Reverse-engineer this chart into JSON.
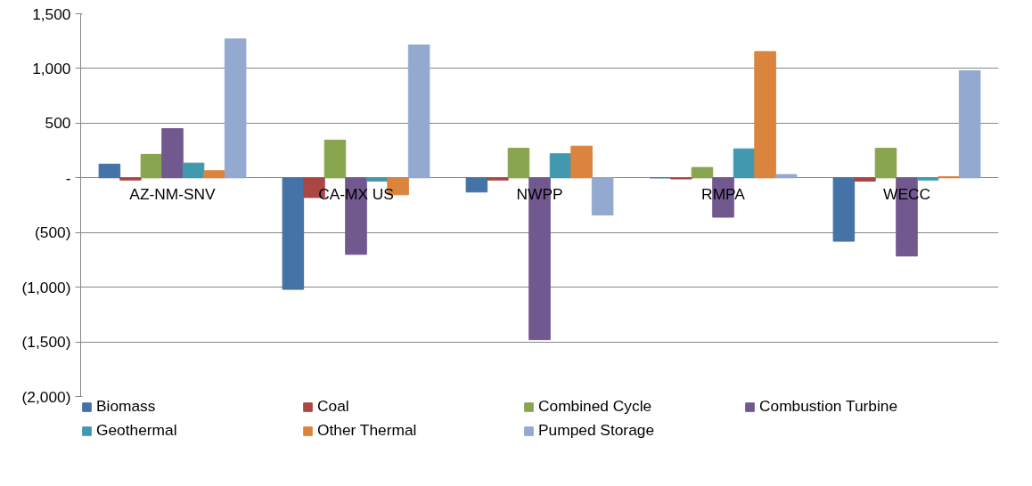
{
  "chart_data": {
    "type": "bar",
    "categories": [
      "AZ-NM-SNV",
      "CA-MX US",
      "NWPP",
      "RMPA",
      "WECC"
    ],
    "series": [
      {
        "name": "Biomass",
        "color": "#4572a7",
        "values": [
          125,
          -1020,
          -130,
          0,
          -580
        ]
      },
      {
        "name": "Coal",
        "color": "#aa4643",
        "values": [
          -20,
          -180,
          -20,
          -10,
          -30
        ]
      },
      {
        "name": "Combined Cycle",
        "color": "#89a54e",
        "values": [
          215,
          345,
          270,
          95,
          270
        ]
      },
      {
        "name": "Combustion Turbine",
        "color": "#71588f",
        "values": [
          450,
          -700,
          -1480,
          -360,
          -715
        ]
      },
      {
        "name": "Geothermal",
        "color": "#4198af",
        "values": [
          135,
          -30,
          220,
          265,
          -20
        ]
      },
      {
        "name": "Other Thermal",
        "color": "#db843d",
        "values": [
          65,
          -155,
          290,
          1155,
          10
        ]
      },
      {
        "name": "Pumped Storage",
        "color": "#93a9cf",
        "values": [
          1270,
          1215,
          -340,
          30,
          980
        ]
      }
    ],
    "ylim": [
      -2000,
      1500
    ],
    "yticks": [
      {
        "value": -2000,
        "label": "(2,000)"
      },
      {
        "value": -1500,
        "label": "(1,500)"
      },
      {
        "value": -1000,
        "label": "(1,000)"
      },
      {
        "value": -500,
        "label": "(500)"
      },
      {
        "value": 0,
        "label": "-"
      },
      500,
      {
        "value": 1000,
        "label": "1,000"
      },
      {
        "value": 1500,
        "label": "1,500"
      }
    ],
    "grid": "y",
    "legend": "bottom"
  }
}
